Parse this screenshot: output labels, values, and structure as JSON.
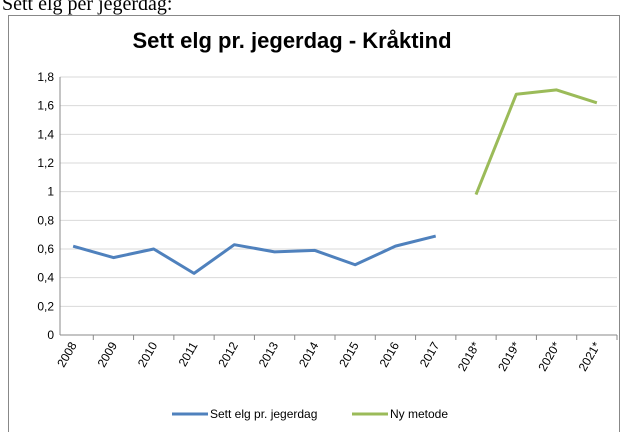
{
  "caption": "Sett elg per jegerdag:",
  "chart_data": {
    "type": "line",
    "title": "Sett elg pr. jegerdag - Kråktind",
    "categories": [
      "2008",
      "2009",
      "2010",
      "2011",
      "2012",
      "2013",
      "2014",
      "2015",
      "2016",
      "2017",
      "2018*",
      "2019*",
      "2020*",
      "2021*"
    ],
    "series": [
      {
        "name": "Sett elg pr. jegerdag",
        "color": "#4f81bd",
        "values": [
          0.62,
          0.54,
          0.6,
          0.43,
          0.63,
          0.58,
          0.59,
          0.49,
          0.62,
          0.69,
          null,
          null,
          null,
          null
        ]
      },
      {
        "name": "Ny metode",
        "color": "#9bbb59",
        "values": [
          null,
          null,
          null,
          null,
          null,
          null,
          null,
          null,
          null,
          null,
          0.98,
          1.68,
          1.71,
          1.62
        ]
      }
    ],
    "ylim": [
      0,
      1.8
    ],
    "yticks": [
      0,
      {
        "value": 0.2,
        "label": "0,2"
      },
      {
        "value": 0.4,
        "label": "0,4"
      },
      {
        "value": 0.6,
        "label": "0,6"
      },
      {
        "value": 0.8,
        "label": "0,8"
      },
      1,
      {
        "value": 1.2,
        "label": "1,2"
      },
      {
        "value": 1.4,
        "label": "1,4"
      },
      {
        "value": 1.6,
        "label": "1,6"
      },
      {
        "value": 1.8,
        "label": "1,8"
      }
    ],
    "grid": true,
    "legend": "bottom"
  }
}
